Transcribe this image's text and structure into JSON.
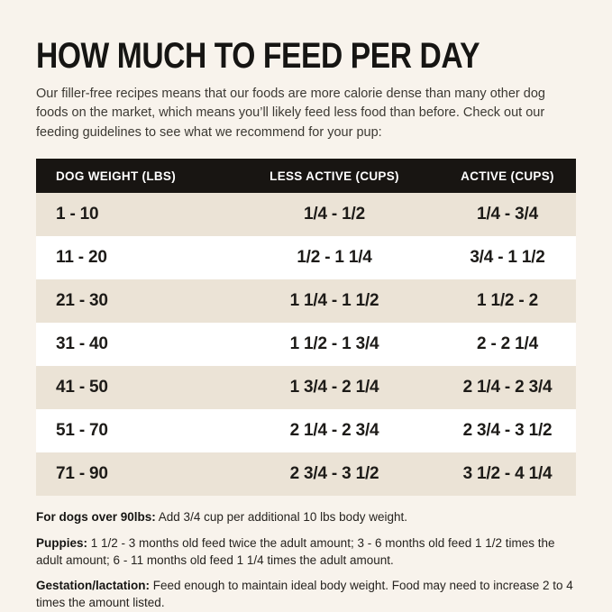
{
  "page": {
    "title": "HOW MUCH TO FEED PER DAY",
    "intro": "Our filler-free recipes means that our foods are more calorie dense than many other dog foods on the market, which means you’ll likely feed less food than before. Check out our feeding guidelines to see what we recommend for your pup:"
  },
  "table": {
    "columns": [
      "DOG WEIGHT (LBS)",
      "LESS ACTIVE (CUPS)",
      "ACTIVE (CUPS)"
    ],
    "rows": [
      [
        "1 - 10",
        "1/4 - 1/2",
        "1/4 - 3/4"
      ],
      [
        "11 - 20",
        "1/2 - 1 1/4",
        "3/4 - 1 1/2"
      ],
      [
        "21 - 30",
        "1 1/4 - 1 1/2",
        "1 1/2 - 2"
      ],
      [
        "31 - 40",
        "1 1/2 - 1 3/4",
        "2 - 2 1/4"
      ],
      [
        "41 - 50",
        "1 3/4 - 2 1/4",
        "2 1/4 - 2 3/4"
      ],
      [
        "51 - 70",
        "2 1/4 - 2 3/4",
        "2 3/4 - 3 1/2"
      ],
      [
        "71 - 90",
        "2 3/4 - 3 1/2",
        "3 1/2 - 4 1/4"
      ]
    ]
  },
  "notes": [
    {
      "label": "For dogs over 90lbs:",
      "text": " Add 3/4 cup per additional 10 lbs body weight."
    },
    {
      "label": "Puppies:",
      "text": " 1 1/2 - 3 months old feed twice the adult amount; 3 - 6 months old feed 1 1/2 times the adult amount; 6 - 11 months old feed 1 1/4 times the adult amount."
    },
    {
      "label": "Gestation/lactation:",
      "text": " Feed enough to maintain ideal body weight. Food may need to increase 2 to 4 times the amount listed."
    }
  ],
  "colors": {
    "background": "#f8f3ec",
    "header_bg": "#181512",
    "header_text": "#ffffff",
    "row_shaded": "#ebe3d6",
    "row_plain": "#ffffff",
    "text": "#1d1b18"
  }
}
